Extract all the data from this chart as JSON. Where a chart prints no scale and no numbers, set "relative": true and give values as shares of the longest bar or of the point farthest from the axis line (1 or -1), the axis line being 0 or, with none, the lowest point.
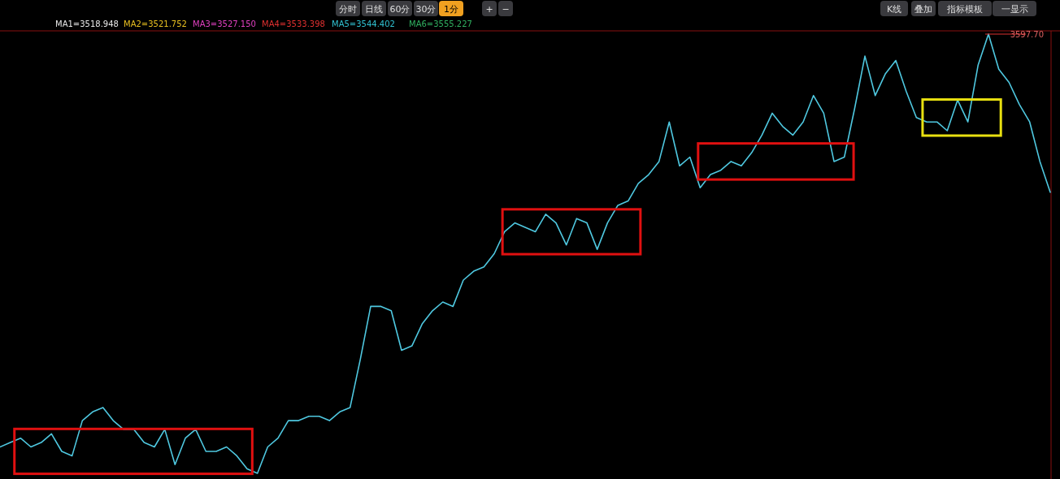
{
  "chart_data": {
    "type": "line",
    "relative": true,
    "categories": [
      null,
      null,
      null,
      null,
      null,
      null,
      null,
      null,
      null,
      null,
      null,
      null,
      null,
      null,
      null,
      null,
      null,
      null,
      null,
      null,
      null,
      null,
      null,
      null,
      null,
      null,
      null,
      null,
      null,
      null,
      null,
      null,
      null,
      null,
      null,
      null,
      null,
      null,
      null,
      null,
      null,
      null,
      null,
      null,
      null,
      null,
      null,
      null,
      null,
      null,
      null,
      null,
      null,
      null,
      null,
      null,
      null,
      null,
      null,
      null,
      null,
      null,
      null,
      null,
      null,
      null,
      null,
      null,
      null,
      null,
      null,
      null,
      null,
      null,
      null,
      null,
      null,
      null,
      null,
      null,
      null,
      null,
      null,
      null,
      null,
      null,
      null,
      null,
      null,
      null,
      null,
      null,
      null,
      null,
      null,
      null,
      null,
      null,
      null,
      null,
      null,
      null,
      null
    ],
    "series": [
      {
        "color": "#4fc8e0",
        "values": [
          0.06,
          0.07,
          0.08,
          0.06,
          0.07,
          0.09,
          0.05,
          0.04,
          0.12,
          0.14,
          0.15,
          0.12,
          0.1,
          0.1,
          0.07,
          0.06,
          0.1,
          0.02,
          0.08,
          0.1,
          0.05,
          0.05,
          0.06,
          0.04,
          0.01,
          0,
          0.06,
          0.08,
          0.12,
          0.12,
          0.13,
          0.13,
          0.12,
          0.14,
          0.15,
          0.26,
          0.38,
          0.38,
          0.37,
          0.28,
          0.29,
          0.34,
          0.37,
          0.39,
          0.38,
          0.44,
          0.46,
          0.47,
          0.5,
          0.55,
          0.57,
          0.56,
          0.55,
          0.59,
          0.57,
          0.52,
          0.58,
          0.57,
          0.51,
          0.57,
          0.61,
          0.62,
          0.66,
          0.68,
          0.71,
          0.8,
          0.7,
          0.72,
          0.65,
          0.68,
          0.69,
          0.71,
          0.7,
          0.73,
          0.77,
          0.82,
          0.79,
          0.77,
          0.8,
          0.86,
          0.82,
          0.71,
          0.72,
          0.83,
          0.95,
          0.86,
          0.91,
          0.94,
          0.87,
          0.81,
          0.8,
          0.8,
          0.78,
          0.85,
          0.8,
          0.93,
          1,
          0.92,
          0.89,
          0.84,
          0.8,
          0.71,
          0.64
        ]
      }
    ],
    "annotations": [
      "分时",
      "日线",
      "60分",
      "30分",
      "1分",
      "+",
      "−",
      "K线",
      "叠加",
      "指标模板",
      "一显示",
      "MA1=3518.948",
      "MA2=3521.752",
      "MA3=3527.150",
      "MA4=3533.398",
      "MA5=3544.402",
      "MA6=3555.227",
      "3597.70"
    ],
    "grid": false
  }
}
